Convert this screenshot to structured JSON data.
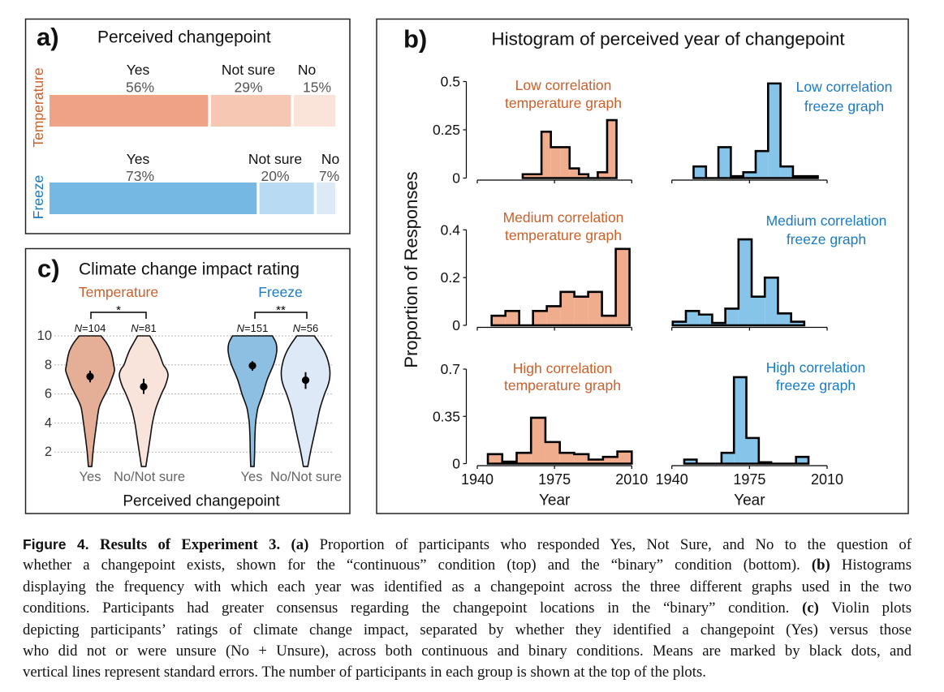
{
  "chart_data": [
    {
      "panel": "a)",
      "type": "bar",
      "orientation": "horizontal-stacked",
      "title": "Perceived changepoint",
      "categories": [
        "Temperature",
        "Freeze"
      ],
      "segments": [
        "Yes",
        "Not sure",
        "No"
      ],
      "unit": "%",
      "series": [
        {
          "name": "Temperature",
          "label_color": "#c8612c",
          "values": [
            56,
            29,
            15
          ],
          "value_labels": [
            "56%",
            "29%",
            "15%"
          ],
          "colors": [
            "#eea387",
            "#f6c8b4",
            "#fae3d8"
          ]
        },
        {
          "name": "Freeze",
          "label_color": "#1b7bc1",
          "values": [
            73,
            20,
            7
          ],
          "value_labels": [
            "73%",
            "20%",
            "7%"
          ],
          "colors": [
            "#76b8e4",
            "#b8daf2",
            "#dceaf7"
          ]
        }
      ]
    },
    {
      "panel": "b)",
      "type": "bar",
      "variant": "histogram",
      "title": "Histogram of perceived year of changepoint",
      "ylabel": "Proportion of Responses",
      "xlabel": "Year",
      "xlim": [
        1940,
        2010
      ],
      "xticks": [
        1940,
        1975,
        2010
      ],
      "xtick_labels": [
        "1940",
        "1975",
        "2010"
      ],
      "grid": false,
      "colors": {
        "temperature": "#f0ad8e",
        "freeze": "#86c4ea",
        "temperature_label": "#c8612c",
        "freeze_label": "#1b7bc1"
      },
      "subplots": [
        {
          "row": 0,
          "group": "temperature",
          "title_lines": [
            "Low correlation",
            "temperature graph"
          ],
          "ylim": [
            0,
            0.5
          ],
          "yticks": [
            0,
            0.25,
            0.5
          ],
          "ytick_labels": [
            "0",
            "0.25",
            "0.5"
          ],
          "bin_start": 1960.6,
          "bin_width": 4.25,
          "values": [
            0.02,
            0.02,
            0.24,
            0.16,
            0.16,
            0.05,
            0.02,
            0,
            0.03,
            0.3
          ]
        },
        {
          "row": 0,
          "group": "freeze",
          "title_lines": [
            "Low correlation",
            "freeze graph"
          ],
          "ylim": [
            0,
            0.5
          ],
          "bin_start": 1949.8,
          "bin_width": 5.6,
          "values": [
            0.06,
            0,
            0.16,
            0.01,
            0.03,
            0.14,
            0.49,
            0.06,
            0.01,
            0.01
          ]
        },
        {
          "row": 1,
          "group": "temperature",
          "title_lines": [
            "Medium correlation",
            "temperature graph"
          ],
          "ylim": [
            0,
            0.4
          ],
          "yticks": [
            0,
            0.2,
            0.4
          ],
          "ytick_labels": [
            "0",
            "0.2",
            "0.4"
          ],
          "bin_start": 1946.5,
          "bin_width": 6.25,
          "values": [
            0.04,
            0.06,
            0,
            0.06,
            0.08,
            0.14,
            0.12,
            0.14,
            0.04,
            0.32
          ]
        },
        {
          "row": 1,
          "group": "freeze",
          "title_lines": [
            "Medium correlation",
            "freeze graph"
          ],
          "ylim": [
            0,
            0.4
          ],
          "bin_start": 1940.4,
          "bin_width": 5.93,
          "values": [
            0.015,
            0.06,
            0.045,
            0.01,
            0.07,
            0.36,
            0.12,
            0.2,
            0.05,
            0.015
          ]
        },
        {
          "row": 2,
          "group": "temperature",
          "title_lines": [
            "High correlation",
            "temperature graph"
          ],
          "ylim": [
            0,
            0.7
          ],
          "yticks": [
            0,
            0.35,
            0.7
          ],
          "ytick_labels": [
            "0",
            "0.35",
            "0.7"
          ],
          "bin_start": 1944.8,
          "bin_width": 6.52,
          "values": [
            0.07,
            0.015,
            0.08,
            0.34,
            0.16,
            0.08,
            0.07,
            0.03,
            0.05,
            0.09
          ]
        },
        {
          "row": 2,
          "group": "freeze",
          "title_lines": [
            "High correlation",
            "freeze graph"
          ],
          "ylim": [
            0,
            0.7
          ],
          "bin_start": 1945.6,
          "bin_width": 5.6,
          "values": [
            0.03,
            0,
            0,
            0.08,
            0.64,
            0.19,
            0.01,
            0,
            0,
            0.05
          ]
        }
      ]
    },
    {
      "panel": "c)",
      "type": "area",
      "variant": "violin",
      "title": "Climate change impact rating",
      "xlabel": "Perceived changepoint",
      "ylim": [
        1,
        10
      ],
      "yticks": [
        2,
        4,
        6,
        8,
        10
      ],
      "ytick_labels": [
        "2",
        "4",
        "6",
        "8",
        "10"
      ],
      "grid": "horizontal-dotted",
      "groups": [
        {
          "name": "Temperature",
          "label_color": "#c8612c",
          "significance": "*",
          "violins": [
            {
              "label": "Yes",
              "n": 104,
              "n_label_parts": [
                "N",
                "=104"
              ],
              "mean": 7.2,
              "se": [
                6.8,
                7.6
              ],
              "fill": "#e4ae97",
              "density": [
                [
                  1,
                  0.07
                ],
                [
                  2,
                  0.12
                ],
                [
                  3,
                  0.19
                ],
                [
                  4,
                  0.27
                ],
                [
                  5,
                  0.36
                ],
                [
                  5.5,
                  0.47
                ],
                [
                  6,
                  0.62
                ],
                [
                  6.5,
                  0.77
                ],
                [
                  7,
                  0.88
                ],
                [
                  7.6,
                  1.0
                ],
                [
                  8,
                  0.97
                ],
                [
                  8.5,
                  0.92
                ],
                [
                  9,
                  0.84
                ],
                [
                  9.5,
                  0.68
                ],
                [
                  10,
                  0.45
                ]
              ]
            },
            {
              "label": "No/Not sure",
              "n": 81,
              "n_label_parts": [
                "N",
                "=81"
              ],
              "mean": 6.5,
              "se": [
                6.0,
                7.05
              ],
              "fill": "#f8e4da",
              "density": [
                [
                  1,
                  0.09
                ],
                [
                  2,
                  0.18
                ],
                [
                  3,
                  0.27
                ],
                [
                  4,
                  0.36
                ],
                [
                  5,
                  0.5
                ],
                [
                  6,
                  0.73
                ],
                [
                  6.5,
                  0.87
                ],
                [
                  7,
                  0.97
                ],
                [
                  7.35,
                  1.0
                ],
                [
                  7.7,
                  0.93
                ],
                [
                  8,
                  0.81
                ],
                [
                  8.5,
                  0.7
                ],
                [
                  9,
                  0.58
                ],
                [
                  9.5,
                  0.42
                ],
                [
                  10,
                  0.25
                ]
              ]
            }
          ]
        },
        {
          "name": "Freeze",
          "label_color": "#1b7bc1",
          "significance": "**",
          "violins": [
            {
              "label": "Yes",
              "n": 151,
              "n_label_parts": [
                "N",
                "=151"
              ],
              "mean": 7.95,
              "se": [
                7.6,
                8.25
              ],
              "fill": "#8dbfe2",
              "density": [
                [
                  1,
                  0.07
                ],
                [
                  2,
                  0.09
                ],
                [
                  3,
                  0.1
                ],
                [
                  4,
                  0.13
                ],
                [
                  4.5,
                  0.17
                ],
                [
                  5,
                  0.22
                ],
                [
                  5.5,
                  0.32
                ],
                [
                  6,
                  0.43
                ],
                [
                  7,
                  0.61
                ],
                [
                  8,
                  0.86
                ],
                [
                  8.5,
                  0.95
                ],
                [
                  9,
                  1.0
                ],
                [
                  9.5,
                  0.97
                ],
                [
                  10,
                  0.82
                ]
              ]
            },
            {
              "label": "No/Not sure",
              "n": 56,
              "n_label_parts": [
                "N",
                "=56"
              ],
              "mean": 6.95,
              "se": [
                6.35,
                7.5
              ],
              "fill": "#dde9f6",
              "density": [
                [
                  1,
                  0.09
                ],
                [
                  2,
                  0.2
                ],
                [
                  3,
                  0.33
                ],
                [
                  4,
                  0.46
                ],
                [
                  5,
                  0.59
                ],
                [
                  6,
                  0.78
                ],
                [
                  6.5,
                  0.9
                ],
                [
                  7,
                  0.98
                ],
                [
                  7.5,
                  1.0
                ],
                [
                  8,
                  0.96
                ],
                [
                  8.5,
                  0.88
                ],
                [
                  9,
                  0.75
                ],
                [
                  9.5,
                  0.57
                ],
                [
                  10,
                  0.36
                ]
              ]
            }
          ]
        }
      ]
    }
  ],
  "caption": {
    "lines": [
      {
        "figure_label": "Figure 4.",
        "title": "Results of Experiment 3.",
        "panel_ref": "(a)",
        "text": "Proportion of participants who responded Yes, Not Sure, and No to the question of"
      },
      {
        "text": "whether a changepoint exists, shown for the “continuous” condition (top) and the “binary” condition (bottom).",
        "panel_ref": "(b)",
        "text_after": "Histograms"
      },
      {
        "text": "displaying the frequency with which each year was identified as a changepoint across the three different graphs used in the two"
      },
      {
        "text": "conditions. Participants had greater consensus regarding the changepoint locations in the “binary” condition.",
        "panel_ref": "(c)",
        "text_after": "Violin plots"
      },
      {
        "text": "depicting participants’ ratings of climate change impact, separated by whether they identified a changepoint (Yes) versus those"
      },
      {
        "text": "who did not or were unsure (No + Unsure), across both continuous and binary conditions. Means are marked by black dots, and"
      },
      {
        "text": "vertical lines represent standard errors. The number of participants in each group is shown at the top of the plots."
      }
    ]
  }
}
